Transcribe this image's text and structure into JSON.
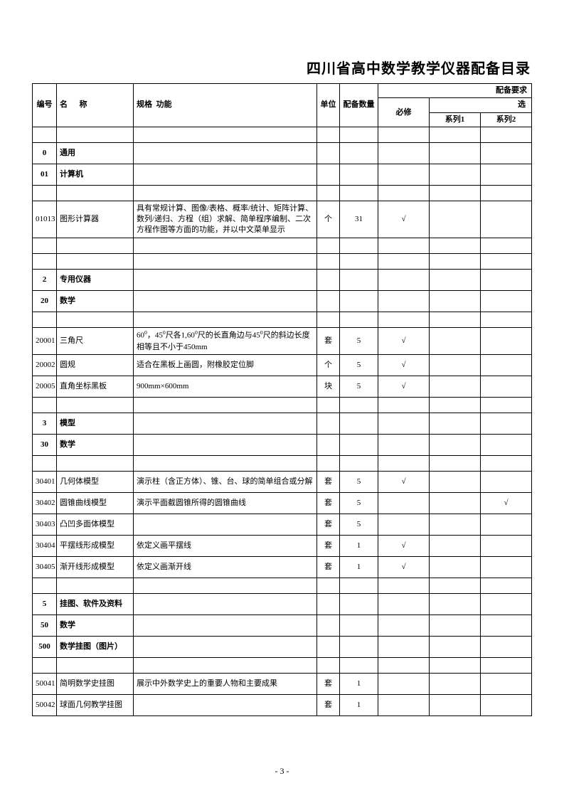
{
  "title": "四川省高中数学教学仪器配备目录",
  "pageNumber": "- 3 -",
  "headers": {
    "id": "编号",
    "name": "名      称",
    "spec": "规格  功能",
    "unit": "单位",
    "qty": "配备数量",
    "reqGroup": "配备要求",
    "required": "必修",
    "optional": "选",
    "series1": "系列1",
    "series2": "系列2"
  },
  "rows": [
    {
      "type": "empty"
    },
    {
      "type": "section",
      "id": "0",
      "name": "通用",
      "bold": true
    },
    {
      "type": "section",
      "id": "01",
      "name": "计算机",
      "bold": true
    },
    {
      "type": "empty"
    },
    {
      "type": "data",
      "rowClass": "tall-row",
      "id": "01013",
      "name": "图形计算器",
      "spec": "具有常规计算、图像/表格、概率/统计、矩阵计算、数列/递归、方程（组）求解、简单程序编制、二次方程作图等方面的功能，并以中文菜单显示",
      "unit": "个",
      "qty": "31",
      "req": "√",
      "s1": "",
      "s2": ""
    },
    {
      "type": "empty"
    },
    {
      "type": "empty"
    },
    {
      "type": "section",
      "id": "2",
      "name": "专用仪器",
      "bold": true
    },
    {
      "type": "section",
      "id": "20",
      "name": "数学",
      "bold": true
    },
    {
      "type": "empty"
    },
    {
      "type": "data",
      "rowClass": "med-row",
      "id": "20001",
      "name": "三角尺",
      "specHtml": "60<sup>0</sup>，45<sup>0</sup>尺各1,60<sup>0</sup>尺的长直角边与45<sup>0</sup>尺的斜边长度相等且不小于450mm",
      "unit": "套",
      "qty": "5",
      "req": "√",
      "s1": "",
      "s2": ""
    },
    {
      "type": "data",
      "id": "20002",
      "name": "圆规",
      "spec": "适合在黑板上画圆，附橡胶定位脚",
      "unit": "个",
      "qty": "5",
      "req": "√",
      "s1": "",
      "s2": ""
    },
    {
      "type": "data",
      "id": "20005",
      "name": "直角坐标黑板",
      "spec": "900mm×600mm",
      "unit": "块",
      "qty": "5",
      "req": "√",
      "s1": "",
      "s2": ""
    },
    {
      "type": "empty"
    },
    {
      "type": "section",
      "id": "3",
      "name": "模型",
      "bold": true
    },
    {
      "type": "section",
      "id": "30",
      "name": "数学",
      "bold": true
    },
    {
      "type": "empty"
    },
    {
      "type": "data",
      "id": "30401",
      "name": "几何体模型",
      "spec": "演示柱（含正方体）、锥、台、球的简单组合或分解",
      "unit": "套",
      "qty": "5",
      "req": "√",
      "s1": "",
      "s2": ""
    },
    {
      "type": "data",
      "id": "30402",
      "name": "圆锥曲线模型",
      "spec": "演示平面截圆锥所得的圆锥曲线",
      "unit": "套",
      "qty": "5",
      "req": "",
      "s1": "",
      "s2": "√"
    },
    {
      "type": "data",
      "id": "30403",
      "name": "凸凹多面体模型",
      "spec": "",
      "unit": "套",
      "qty": "5",
      "req": "",
      "s1": "",
      "s2": ""
    },
    {
      "type": "data",
      "id": "30404",
      "name": "平摆线形成模型",
      "spec": "依定义画平摆线",
      "unit": "套",
      "qty": "1",
      "req": "√",
      "s1": "",
      "s2": ""
    },
    {
      "type": "data",
      "id": "30405",
      "name": "渐开线形成模型",
      "spec": "依定义画渐开线",
      "unit": "套",
      "qty": "1",
      "req": "√",
      "s1": "",
      "s2": ""
    },
    {
      "type": "empty"
    },
    {
      "type": "section",
      "id": "5",
      "name": "挂图、软件及资料",
      "bold": true
    },
    {
      "type": "section",
      "id": "50",
      "name": "数学",
      "bold": true
    },
    {
      "type": "section",
      "id": "500",
      "name": "数学挂图（图片）",
      "bold": true
    },
    {
      "type": "empty"
    },
    {
      "type": "data",
      "id": "50041",
      "name": "简明数学史挂图",
      "spec": "展示中外数学史上的重要人物和主要成果",
      "unit": "套",
      "qty": "1",
      "req": "",
      "s1": "",
      "s2": ""
    },
    {
      "type": "data",
      "id": "50042",
      "name": "球面几何教学挂图",
      "spec": "",
      "unit": "套",
      "qty": "1",
      "req": "",
      "s1": "",
      "s2": ""
    }
  ],
  "style": {
    "background": "#ffffff",
    "borderColor": "#000000",
    "textColor": "#000000",
    "titleFontSize": 20,
    "bodyFontSize": 11,
    "pageWidth": 793,
    "pageHeight": 1122
  }
}
